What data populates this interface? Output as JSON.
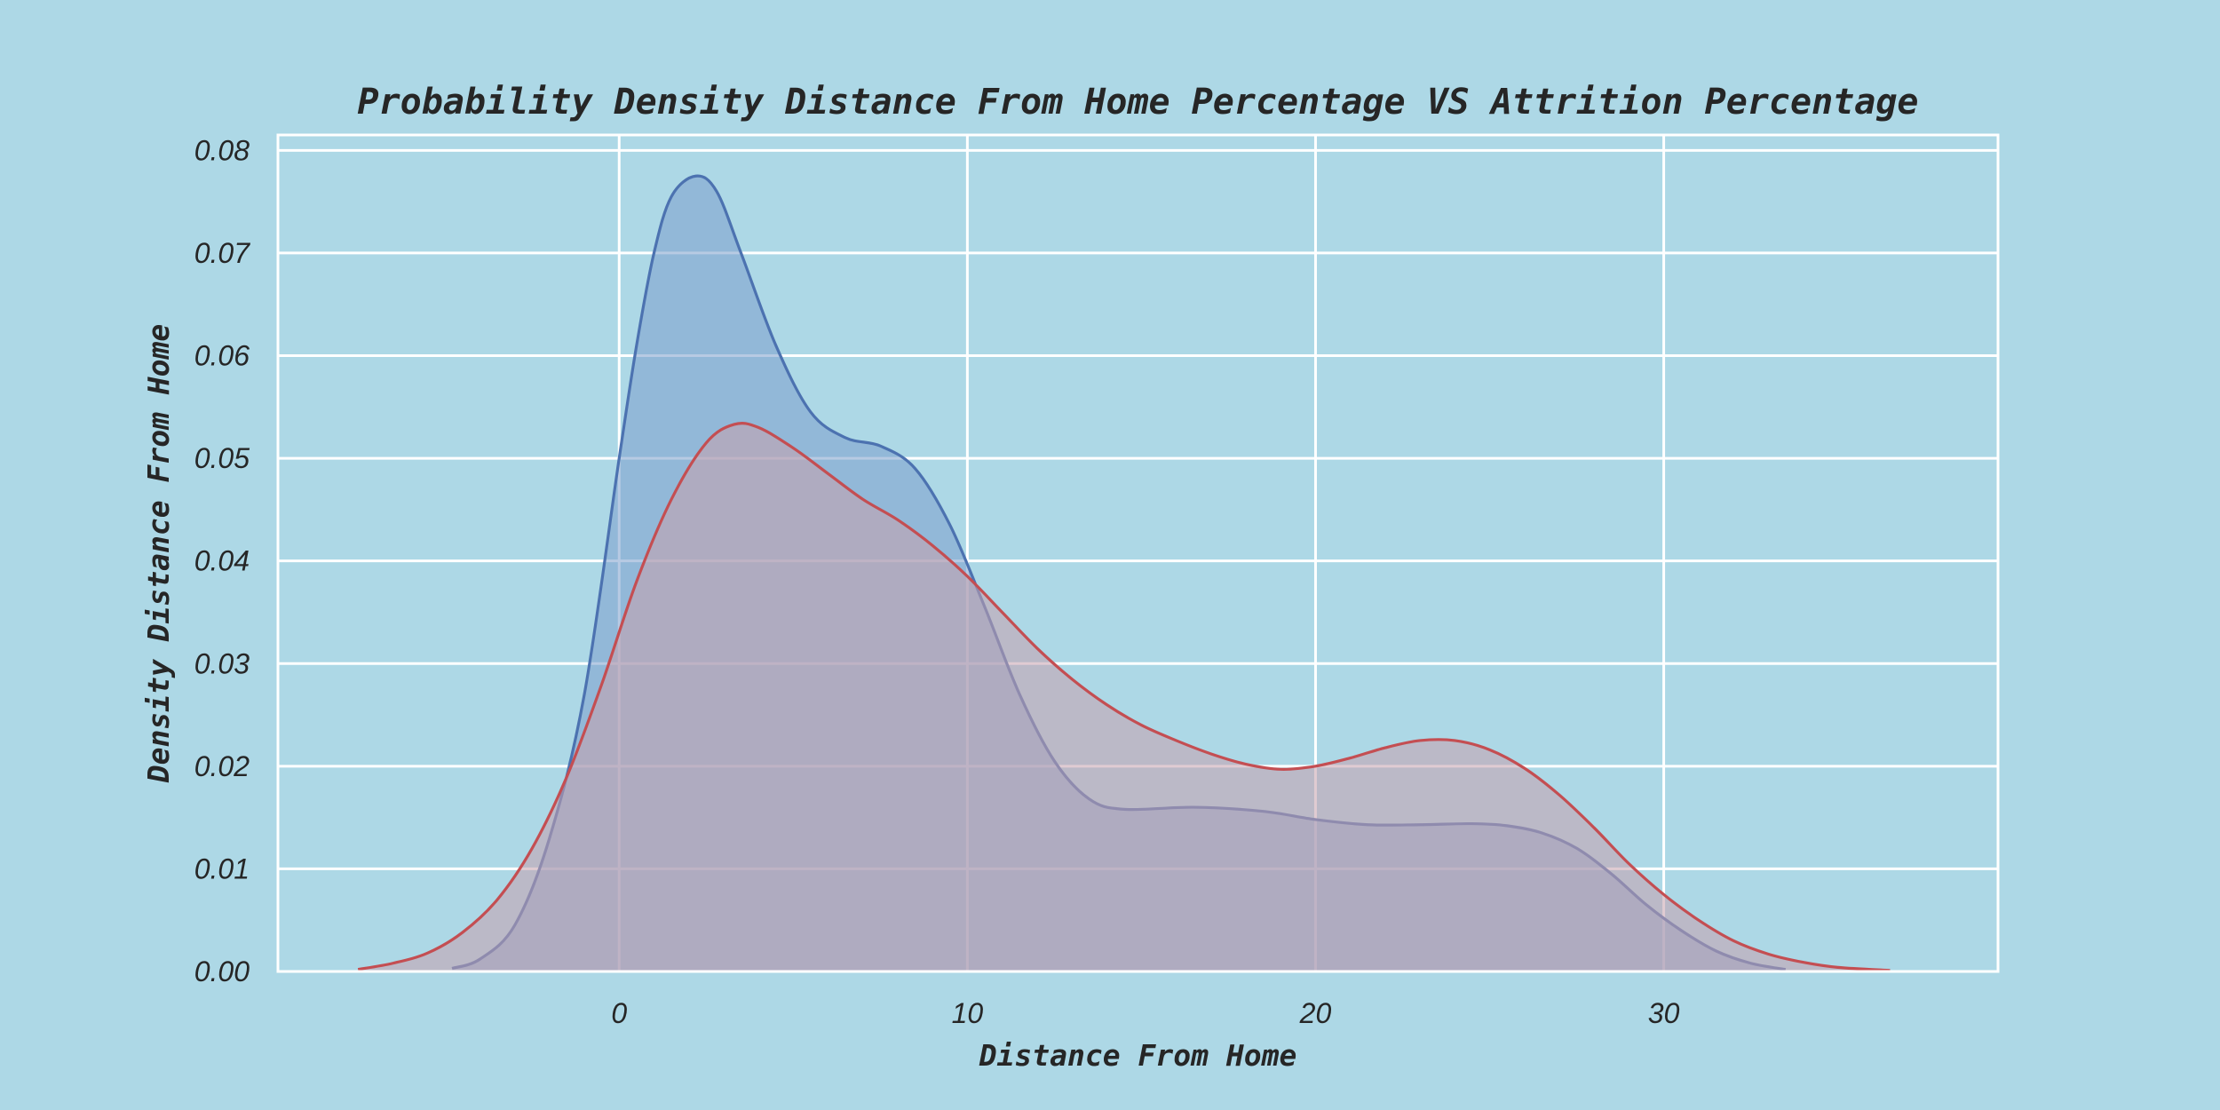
{
  "chart_data": {
    "type": "area",
    "title": "Probability Density Distance From Home Percentage VS Attrition Percentage",
    "xlabel": "Distance From Home",
    "ylabel": "Density Distance From Home",
    "xlim": [
      -9.8,
      39.6
    ],
    "ylim": [
      0,
      0.0815
    ],
    "x_ticks": [
      {
        "value": 0,
        "label": "0"
      },
      {
        "value": 10,
        "label": "10"
      },
      {
        "value": 20,
        "label": "20"
      },
      {
        "value": 30,
        "label": "30"
      }
    ],
    "y_ticks": [
      {
        "value": 0,
        "label": "0.00"
      },
      {
        "value": 0.01,
        "label": "0.01"
      },
      {
        "value": 0.02,
        "label": "0.02"
      },
      {
        "value": 0.03,
        "label": "0.03"
      },
      {
        "value": 0.04,
        "label": "0.04"
      },
      {
        "value": 0.05,
        "label": "0.05"
      },
      {
        "value": 0.06,
        "label": "0.06"
      },
      {
        "value": 0.07,
        "label": "0.07"
      },
      {
        "value": 0.08,
        "label": "0.08"
      }
    ],
    "grid": true,
    "legend": "none",
    "series": [
      {
        "color": "#4c72b0",
        "fill": "#7b9fcc",
        "points": [
          [
            -4.8,
            0.0003
          ],
          [
            -4.0,
            0.0012
          ],
          [
            -3.0,
            0.0045
          ],
          [
            -2.0,
            0.013
          ],
          [
            -1.0,
            0.027
          ],
          [
            0.0,
            0.05
          ],
          [
            0.5,
            0.061
          ],
          [
            1.0,
            0.07
          ],
          [
            1.5,
            0.0755
          ],
          [
            2.2,
            0.0775
          ],
          [
            2.8,
            0.076
          ],
          [
            3.5,
            0.07
          ],
          [
            4.5,
            0.061
          ],
          [
            5.5,
            0.0545
          ],
          [
            6.5,
            0.052
          ],
          [
            7.5,
            0.0512
          ],
          [
            8.5,
            0.049
          ],
          [
            9.5,
            0.0435
          ],
          [
            10.5,
            0.0355
          ],
          [
            11.5,
            0.027
          ],
          [
            12.5,
            0.0205
          ],
          [
            13.5,
            0.0168
          ],
          [
            14.5,
            0.0158
          ],
          [
            16.5,
            0.016
          ],
          [
            18.5,
            0.0156
          ],
          [
            20.0,
            0.0148
          ],
          [
            21.5,
            0.0143
          ],
          [
            23.0,
            0.0143
          ],
          [
            24.5,
            0.0144
          ],
          [
            25.5,
            0.0142
          ],
          [
            26.5,
            0.0135
          ],
          [
            27.5,
            0.012
          ],
          [
            28.5,
            0.0095
          ],
          [
            29.5,
            0.0065
          ],
          [
            30.5,
            0.004
          ],
          [
            31.5,
            0.002
          ],
          [
            32.5,
            0.0008
          ],
          [
            33.5,
            0.0002
          ]
        ]
      },
      {
        "color": "#c44e52",
        "fill": "#c7a0ad",
        "points": [
          [
            -7.5,
            0.0002
          ],
          [
            -6.5,
            0.0008
          ],
          [
            -5.5,
            0.0018
          ],
          [
            -4.5,
            0.0038
          ],
          [
            -3.5,
            0.007
          ],
          [
            -2.5,
            0.012
          ],
          [
            -1.5,
            0.019
          ],
          [
            -0.5,
            0.028
          ],
          [
            0.5,
            0.038
          ],
          [
            1.5,
            0.046
          ],
          [
            2.5,
            0.0515
          ],
          [
            3.3,
            0.0533
          ],
          [
            4.0,
            0.053
          ],
          [
            5.0,
            0.051
          ],
          [
            6.0,
            0.0485
          ],
          [
            7.0,
            0.046
          ],
          [
            8.0,
            0.044
          ],
          [
            9.0,
            0.0415
          ],
          [
            10.0,
            0.0385
          ],
          [
            11.0,
            0.035
          ],
          [
            12.0,
            0.0315
          ],
          [
            13.0,
            0.0285
          ],
          [
            14.0,
            0.026
          ],
          [
            15.0,
            0.024
          ],
          [
            16.0,
            0.0225
          ],
          [
            17.0,
            0.0212
          ],
          [
            18.0,
            0.0202
          ],
          [
            19.0,
            0.0197
          ],
          [
            20.0,
            0.02
          ],
          [
            21.0,
            0.0208
          ],
          [
            22.0,
            0.0218
          ],
          [
            23.0,
            0.0225
          ],
          [
            24.0,
            0.0225
          ],
          [
            25.0,
            0.0216
          ],
          [
            26.0,
            0.0198
          ],
          [
            27.0,
            0.0172
          ],
          [
            28.0,
            0.014
          ],
          [
            29.0,
            0.0105
          ],
          [
            30.0,
            0.0075
          ],
          [
            31.0,
            0.005
          ],
          [
            32.0,
            0.003
          ],
          [
            33.0,
            0.0017
          ],
          [
            34.0,
            0.0009
          ],
          [
            35.0,
            0.0004
          ],
          [
            36.5,
            0.0001
          ]
        ]
      }
    ]
  }
}
